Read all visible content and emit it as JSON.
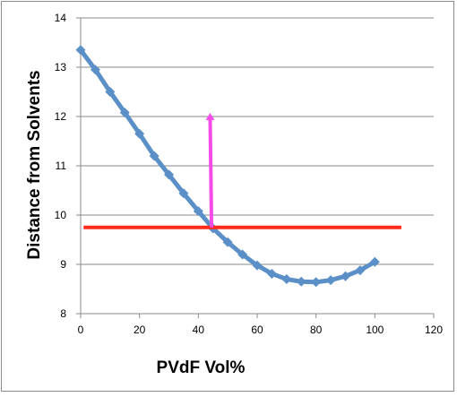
{
  "chart_data": {
    "type": "line",
    "title": "",
    "xlabel": "PVdF Vol%",
    "ylabel": "Distance from Solvents",
    "xlim": [
      0,
      120
    ],
    "ylim": [
      8,
      14
    ],
    "xticks": [
      0,
      20,
      40,
      60,
      80,
      100,
      120
    ],
    "yticks": [
      8,
      9,
      10,
      11,
      12,
      13,
      14
    ],
    "xtick_labels": [
      "0",
      "20",
      "40",
      "60",
      "80",
      "100",
      "120"
    ],
    "ytick_labels": [
      "8",
      "9",
      "10",
      "11",
      "12",
      "13",
      "14"
    ],
    "grid": "horizontal",
    "legend": "none",
    "series": [
      {
        "color": "#5b8fc7",
        "marker": "diamond",
        "x": [
          0,
          5,
          10,
          15,
          20,
          25,
          30,
          35,
          40,
          45,
          50,
          55,
          60,
          65,
          70,
          75,
          80,
          85,
          90,
          95,
          100
        ],
        "y": [
          13.35,
          12.95,
          12.5,
          12.08,
          11.65,
          11.2,
          10.82,
          10.44,
          10.08,
          9.73,
          9.45,
          9.2,
          8.98,
          8.81,
          8.7,
          8.65,
          8.64,
          8.68,
          8.76,
          8.88,
          9.05
        ]
      }
    ],
    "annotations": [
      {
        "kind": "horizontal-line",
        "color": "#ff2a1a",
        "x": [
          1,
          109
        ],
        "y": 9.75
      },
      {
        "kind": "arrow",
        "color": "#f54ce8",
        "from": [
          44.5,
          9.75
        ],
        "to": [
          44,
          12
        ]
      }
    ]
  }
}
